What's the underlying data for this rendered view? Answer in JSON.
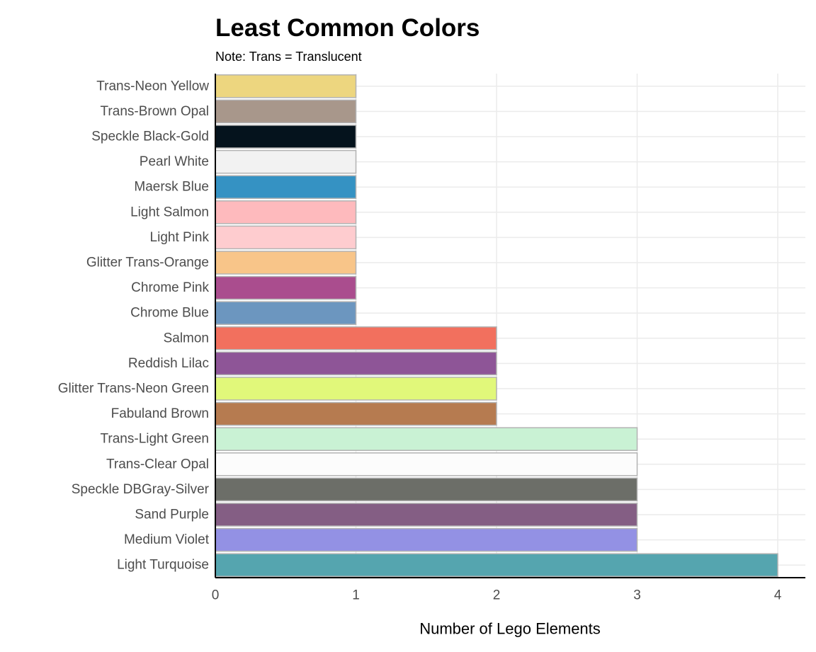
{
  "chart_data": {
    "type": "bar",
    "orientation": "horizontal",
    "title": "Least Common Colors",
    "subtitle": "Note: Trans = Translucent",
    "xlabel": "Number of Lego Elements",
    "ylabel": "",
    "xlim": [
      0,
      4.2
    ],
    "x_ticks": [
      0,
      1,
      2,
      3,
      4
    ],
    "grid": true,
    "categories": [
      "Trans-Neon Yellow",
      "Trans-Brown Opal",
      "Speckle Black-Gold",
      "Pearl White",
      "Maersk Blue",
      "Light Salmon",
      "Light Pink",
      "Glitter Trans-Orange",
      "Chrome Pink",
      "Chrome Blue",
      "Salmon",
      "Reddish Lilac",
      "Glitter Trans-Neon Green",
      "Fabuland Brown",
      "Trans-Light Green",
      "Trans-Clear Opal",
      "Speckle DBGray-Silver",
      "Sand Purple",
      "Medium Violet",
      "Light Turquoise"
    ],
    "values": [
      1,
      1,
      1,
      1,
      1,
      1,
      1,
      1,
      1,
      1,
      2,
      2,
      2,
      2,
      3,
      3,
      3,
      3,
      3,
      4
    ],
    "colors": [
      "#EDD67F",
      "#A8978B",
      "#05131D",
      "#F2F2F2",
      "#3592C3",
      "#FEBABD",
      "#FECCCF",
      "#F8C589",
      "#AA4D8E",
      "#6C96BF",
      "#F2705E",
      "#8E5597",
      "#E1F87A",
      "#B67B50",
      "#C9F2D4",
      "#FCFCFC",
      "#6C6E68",
      "#845E84",
      "#9391E4",
      "#55A5AF"
    ],
    "bar_outline_color": "#b3b3b3",
    "grid_color": "#ebebeb",
    "axis_color": "#000000"
  }
}
